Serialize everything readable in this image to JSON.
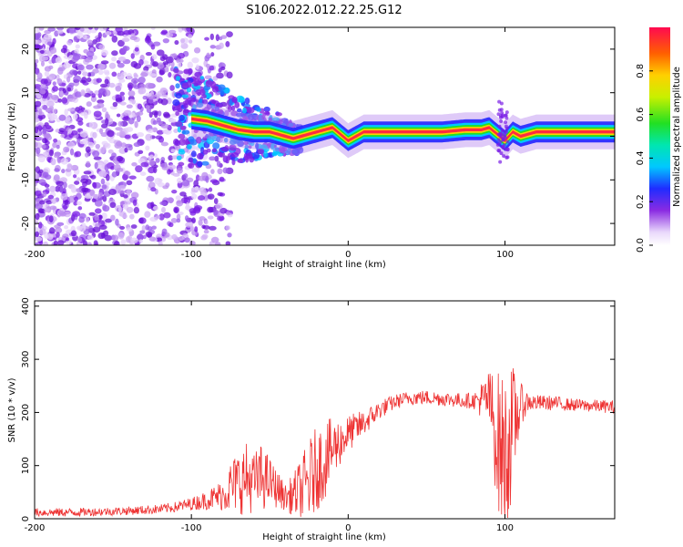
{
  "title": "S106.2022.012.22.25.G12",
  "colors": {
    "snr_line": "#ee3333",
    "scatter_purple": "#7a1ee6",
    "axis": "#000000"
  },
  "chart_data": [
    {
      "type": "heatmap",
      "xlabel": "Height of straight line (km)",
      "ylabel": "Frequency (Hz)",
      "xlim": [
        -200,
        170
      ],
      "ylim": [
        -25,
        25
      ],
      "xticks": [
        -200,
        -100,
        0,
        100
      ],
      "yticks": [
        -20,
        -10,
        0,
        10,
        20
      ],
      "xtick_labels": [
        "-200",
        "-100",
        "0",
        "100"
      ],
      "ytick_labels": [
        "-20",
        "-10",
        "0",
        "10",
        "20"
      ],
      "colorbar": {
        "label": "Normalized spectral amplitude",
        "range": [
          0,
          1
        ],
        "ticks": [
          0.0,
          0.2,
          0.4,
          0.6,
          0.8
        ],
        "tick_labels": [
          "0.0",
          "0.2",
          "0.4",
          "0.6",
          "0.8"
        ],
        "colormap": "rainbow"
      },
      "ridge": [
        {
          "x": -100,
          "f": 4.0
        },
        {
          "x": -90,
          "f": 3.5
        },
        {
          "x": -80,
          "f": 2.5
        },
        {
          "x": -70,
          "f": 1.5
        },
        {
          "x": -60,
          "f": 1.0
        },
        {
          "x": -50,
          "f": 1.0
        },
        {
          "x": -40,
          "f": 0.0
        },
        {
          "x": -35,
          "f": -0.5
        },
        {
          "x": -30,
          "f": 0.0
        },
        {
          "x": -25,
          "f": 0.5
        },
        {
          "x": -20,
          "f": 1.0
        },
        {
          "x": -15,
          "f": 1.5
        },
        {
          "x": -10,
          "f": 2.0
        },
        {
          "x": -5,
          "f": 0.5
        },
        {
          "x": 0,
          "f": -1.0
        },
        {
          "x": 5,
          "f": 0.0
        },
        {
          "x": 10,
          "f": 1.0
        },
        {
          "x": 20,
          "f": 1.0
        },
        {
          "x": 40,
          "f": 1.0
        },
        {
          "x": 60,
          "f": 1.0
        },
        {
          "x": 75,
          "f": 1.5
        },
        {
          "x": 85,
          "f": 1.5
        },
        {
          "x": 90,
          "f": 2.0
        },
        {
          "x": 95,
          "f": 0.5
        },
        {
          "x": 100,
          "f": -1.0
        },
        {
          "x": 105,
          "f": 1.0
        },
        {
          "x": 110,
          "f": 0.0
        },
        {
          "x": 120,
          "f": 1.0
        },
        {
          "x": 140,
          "f": 1.0
        },
        {
          "x": 160,
          "f": 1.0
        },
        {
          "x": 170,
          "f": 1.0
        }
      ]
    },
    {
      "type": "line",
      "xlabel": "Height of straight line (km)",
      "ylabel": "SNR (10 * v/v)",
      "xlim": [
        -200,
        170
      ],
      "ylim": [
        0,
        410
      ],
      "xticks": [
        -200,
        -100,
        0,
        100
      ],
      "yticks": [
        0,
        100,
        200,
        300,
        400
      ],
      "xtick_labels": [
        "-200",
        "-100",
        "0",
        "100"
      ],
      "ytick_labels": [
        "0",
        "100",
        "200",
        "300",
        "400"
      ],
      "series": [
        {
          "x": [
            -200,
            -180,
            -160,
            -140,
            -120,
            -110,
            -100,
            -90,
            -80,
            -75,
            -70,
            -65,
            -60,
            -55,
            -50,
            -45,
            -40,
            -35,
            -30,
            -25,
            -20,
            -15,
            -10,
            -5,
            0,
            10,
            20,
            30,
            40,
            50,
            60,
            70,
            80,
            90,
            95,
            100,
            105,
            110,
            115,
            120,
            130,
            140,
            150,
            160,
            170
          ],
          "values": [
            12,
            12,
            13,
            15,
            18,
            22,
            28,
            35,
            45,
            60,
            70,
            75,
            70,
            78,
            70,
            55,
            40,
            45,
            55,
            70,
            95,
            110,
            130,
            145,
            160,
            180,
            205,
            220,
            228,
            228,
            226,
            223,
            222,
            225,
            150,
            110,
            170,
            215,
            220,
            218,
            218,
            215,
            213,
            212,
            210
          ],
          "spread": [
            8,
            8,
            8,
            8,
            9,
            10,
            12,
            18,
            30,
            50,
            60,
            70,
            55,
            65,
            45,
            35,
            25,
            40,
            60,
            80,
            80,
            75,
            60,
            45,
            35,
            25,
            18,
            14,
            14,
            14,
            14,
            14,
            15,
            55,
            130,
            160,
            120,
            40,
            18,
            15,
            14,
            12,
            12,
            12,
            12
          ]
        }
      ]
    }
  ]
}
